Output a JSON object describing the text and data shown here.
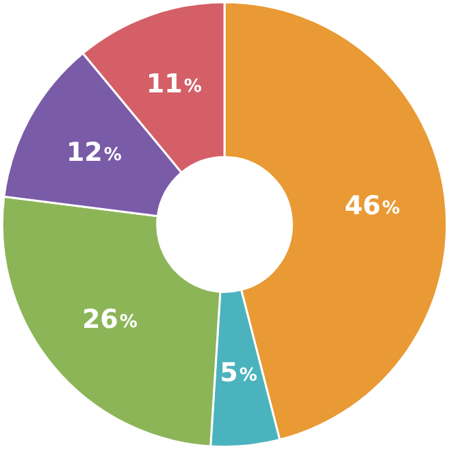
{
  "chart_data": {
    "type": "donut",
    "categories": [
      null,
      null,
      null,
      null,
      null
    ],
    "values": [
      46,
      5,
      26,
      12,
      11
    ],
    "colors": [
      "#e99a35",
      "#4bb3bd",
      "#8cb558",
      "#7a5ba8",
      "#d45f67"
    ],
    "value_labels": [
      "46%",
      "5%",
      "26%",
      "12%",
      "11%"
    ]
  }
}
